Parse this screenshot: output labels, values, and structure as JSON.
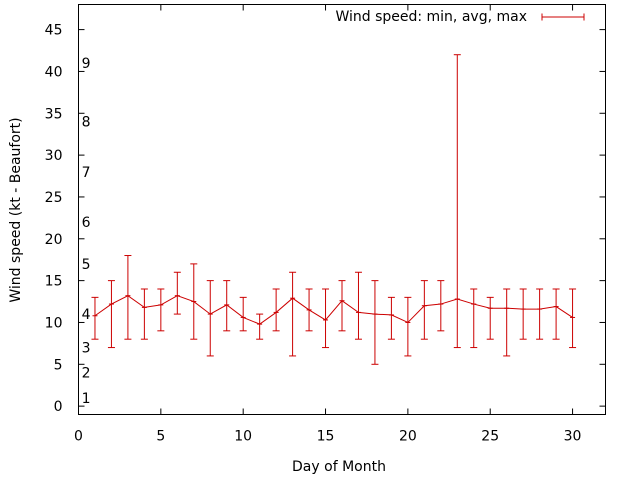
{
  "chart_data": {
    "type": "line",
    "title": "",
    "xlabel": "Day of Month",
    "ylabel": "Wind speed (kt - Beaufort)",
    "xlim": [
      0,
      32
    ],
    "ylim": [
      -1,
      48
    ],
    "xticks": [
      0,
      5,
      10,
      15,
      20,
      25,
      30
    ],
    "yticks": [
      0,
      5,
      10,
      15,
      20,
      25,
      30,
      35,
      40,
      45
    ],
    "grid": false,
    "legend_position": "top-right",
    "series": [
      {
        "name": "Wind speed: min, avg, max",
        "color": "#cc0000",
        "x": [
          1,
          2,
          3,
          4,
          5,
          6,
          7,
          8,
          9,
          10,
          11,
          12,
          13,
          14,
          15,
          16,
          17,
          18,
          19,
          20,
          21,
          22,
          23,
          24,
          25,
          26,
          27,
          28,
          29,
          30
        ],
        "avg": [
          10.8,
          12.2,
          13.2,
          11.8,
          12.1,
          13.2,
          12.5,
          11.0,
          12.1,
          10.6,
          9.8,
          11.2,
          12.9,
          11.5,
          10.3,
          12.6,
          11.2,
          11.0,
          10.9,
          10.0,
          12.0,
          12.2,
          12.8,
          12.2,
          11.7,
          11.7,
          11.6,
          11.6,
          11.9,
          10.6
        ],
        "min": [
          8,
          7,
          8,
          8,
          9,
          11,
          8,
          6,
          9,
          9,
          8,
          9,
          6,
          9,
          7,
          9,
          8,
          5,
          8,
          6,
          8,
          9,
          7,
          7,
          8,
          6,
          8,
          8,
          8,
          7
        ],
        "max": [
          13,
          15,
          18,
          14,
          14,
          16,
          17,
          15,
          15,
          13,
          11,
          14,
          16,
          14,
          14,
          15,
          16,
          15,
          13,
          13,
          15,
          15,
          42,
          14,
          13,
          14,
          14,
          14,
          14,
          14
        ]
      }
    ],
    "annotations": [
      {
        "text": "1",
        "x": 0.7,
        "y": 1
      },
      {
        "text": "2",
        "x": 0.7,
        "y": 4
      },
      {
        "text": "3",
        "x": 0.7,
        "y": 7
      },
      {
        "text": "4",
        "x": 0.7,
        "y": 11
      },
      {
        "text": "5",
        "x": 0.7,
        "y": 17
      },
      {
        "text": "6",
        "x": 0.7,
        "y": 22
      },
      {
        "text": "7",
        "x": 0.7,
        "y": 28
      },
      {
        "text": "8",
        "x": 0.7,
        "y": 34
      },
      {
        "text": "9",
        "x": 0.7,
        "y": 41
      }
    ]
  }
}
